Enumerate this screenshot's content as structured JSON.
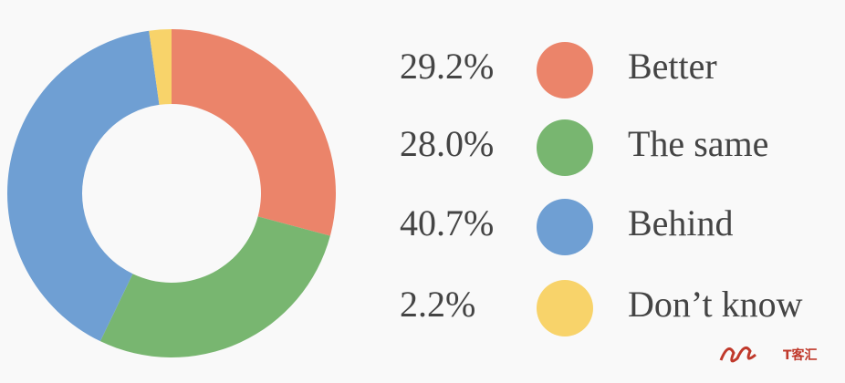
{
  "chart_data": {
    "type": "donut",
    "categories": [
      "Better",
      "The same",
      "Behind",
      "Don’t know"
    ],
    "values": [
      29.2,
      28.0,
      40.7,
      2.2
    ],
    "value_labels": [
      "29.2%",
      "28.0%",
      "40.7%",
      "2.2%"
    ],
    "colors": [
      "#eb846a",
      "#78b670",
      "#6f9fd3",
      "#f8d36a"
    ],
    "watermark": "T客汇"
  }
}
